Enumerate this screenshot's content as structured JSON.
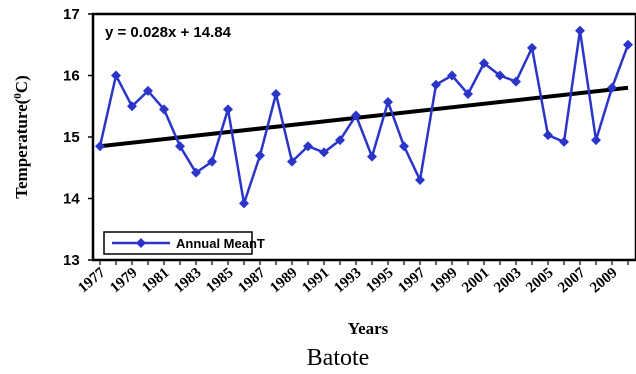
{
  "chart_data": {
    "type": "line",
    "caption": "Batote",
    "equation": "y = 0.028x + 14.84",
    "xlabel": "Years",
    "ylabel_main": "Temperature(",
    "ylabel_sup": "0",
    "ylabel_end": "C)",
    "ylim": [
      13,
      17
    ],
    "yticks": [
      "13",
      "14",
      "15",
      "16",
      "17"
    ],
    "xtick_labels": [
      "1977",
      "1979",
      "1981",
      "1983",
      "1985",
      "1987",
      "1989",
      "1991",
      "1993",
      "1995",
      "1997",
      "1999",
      "2001",
      "2003",
      "2005",
      "2007",
      "2009"
    ],
    "x": [
      1977,
      1978,
      1979,
      1980,
      1981,
      1982,
      1983,
      1984,
      1985,
      1986,
      1987,
      1988,
      1989,
      1990,
      1991,
      1992,
      1993,
      1994,
      1995,
      1996,
      1997,
      1998,
      1999,
      2000,
      2001,
      2002,
      2003,
      2004,
      2005,
      2006,
      2007,
      2008,
      2009,
      2010
    ],
    "series": [
      {
        "name": "Annual MeanT",
        "color": "#2b35c8",
        "values": [
          14.85,
          16.0,
          15.5,
          15.75,
          15.45,
          14.85,
          14.42,
          14.6,
          15.45,
          13.92,
          14.7,
          15.7,
          14.6,
          14.85,
          14.75,
          14.95,
          15.35,
          14.68,
          15.57,
          14.85,
          14.3,
          15.85,
          16.0,
          15.7,
          16.2,
          16.0,
          15.9,
          16.45,
          15.03,
          14.92,
          16.73,
          14.95,
          15.8,
          16.5
        ]
      }
    ],
    "trendline": {
      "color": "#000000",
      "y_start": 14.85,
      "y_end": 15.8
    },
    "legend": {
      "position": "bottom-left"
    },
    "grid": false
  }
}
